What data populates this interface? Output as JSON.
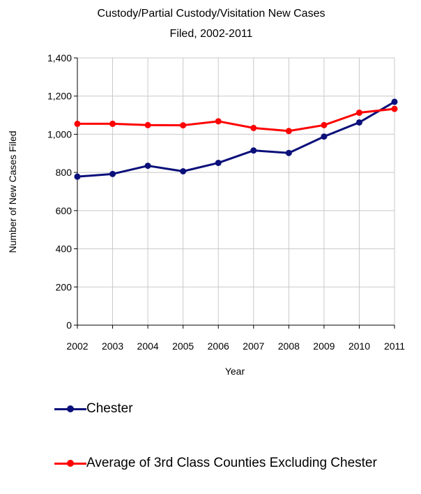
{
  "chart_data": {
    "type": "line",
    "title_lines": [
      "Custody/Partial Custody/Visitation New  Cases",
      "Filed, 2002-2011"
    ],
    "xlabel": "Year",
    "ylabel": "Number of New Cases Filed",
    "ylim": [
      0,
      1400
    ],
    "yticks": [
      "0",
      "200",
      "400",
      "600",
      "800",
      "1,000",
      "1,200",
      "1,400"
    ],
    "categories": [
      "2002",
      "2003",
      "2004",
      "2005",
      "2006",
      "2007",
      "2008",
      "2009",
      "2010",
      "2011"
    ],
    "grid": true,
    "legend_position": "bottom",
    "series": [
      {
        "name": "Chester",
        "color": "#0b0f7a",
        "values": [
          778,
          792,
          835,
          806,
          850,
          915,
          902,
          988,
          1062,
          1170
        ]
      },
      {
        "name": "Average of 3rd Class Counties Excluding Chester",
        "color": "#ff0000",
        "values": [
          1055,
          1055,
          1048,
          1047,
          1068,
          1033,
          1017,
          1048,
          1113,
          1133
        ]
      }
    ]
  }
}
